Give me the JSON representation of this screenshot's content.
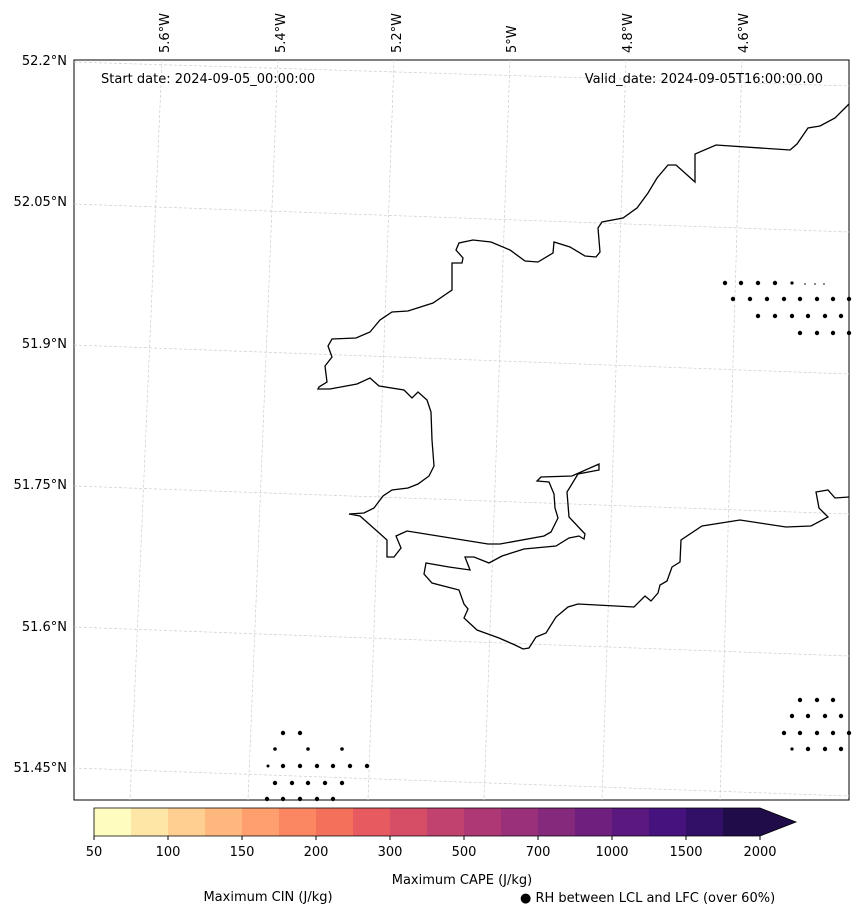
{
  "header": {
    "start_date": "Start date: 2024-09-05_00:00:00",
    "valid_date": "Valid_date: 2024-09-05T16:00:00.00"
  },
  "axes": {
    "lon_labels": [
      "5.6°W",
      "5.4°W",
      "5.2°W",
      "5°W",
      "4.8°W",
      "4.6°W"
    ],
    "lat_labels": [
      "52.2°N",
      "52.05°N",
      "51.9°N",
      "51.75°N",
      "51.6°N",
      "51.45°N"
    ]
  },
  "colorbar": {
    "ticks": [
      "50",
      "100",
      "150",
      "200",
      "300",
      "500",
      "700",
      "1000",
      "1500",
      "2000"
    ],
    "colors": [
      "#fefdbf",
      "#fee6a6",
      "#fecf91",
      "#feb77d",
      "#fe9f6d",
      "#fa8762",
      "#f3705b",
      "#e75a5f",
      "#d64d66",
      "#c2426f",
      "#ae3875",
      "#993079",
      "#84297b",
      "#6f207f",
      "#5b187e",
      "#46127d",
      "#321068",
      "#1f0c48"
    ],
    "label": "Maximum CAPE (J/kg)"
  },
  "legend": {
    "cin_label": "Maximum CIN (J/kg)",
    "cin_color": "#ff0000",
    "rh_label": "● RH between LCL and LFC (over 60%)"
  }
}
